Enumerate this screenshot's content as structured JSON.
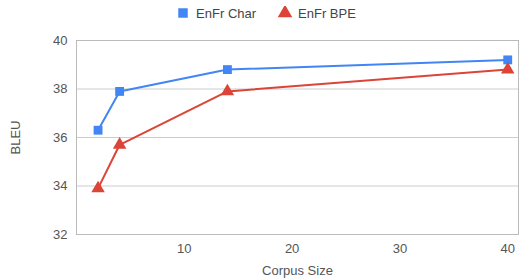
{
  "chart_data": {
    "type": "line",
    "x_label": "Corpus Size",
    "y_label": "BLEU",
    "xlim": [
      0,
      41
    ],
    "xticks": [
      10,
      20,
      30,
      40
    ],
    "ylim": [
      32,
      40
    ],
    "yticks": [
      32,
      34,
      36,
      38,
      40
    ],
    "grid": true,
    "legend": "top",
    "x": [
      2,
      4,
      14,
      40
    ],
    "series": [
      {
        "name": "EnFr Char",
        "color": "#4285f4",
        "marker": "square",
        "values": [
          36.3,
          37.9,
          38.8,
          39.2
        ]
      },
      {
        "name": "EnFr BPE",
        "color": "#db4437",
        "marker": "triangle",
        "values": [
          33.9,
          35.7,
          37.9,
          38.8
        ]
      }
    ]
  }
}
